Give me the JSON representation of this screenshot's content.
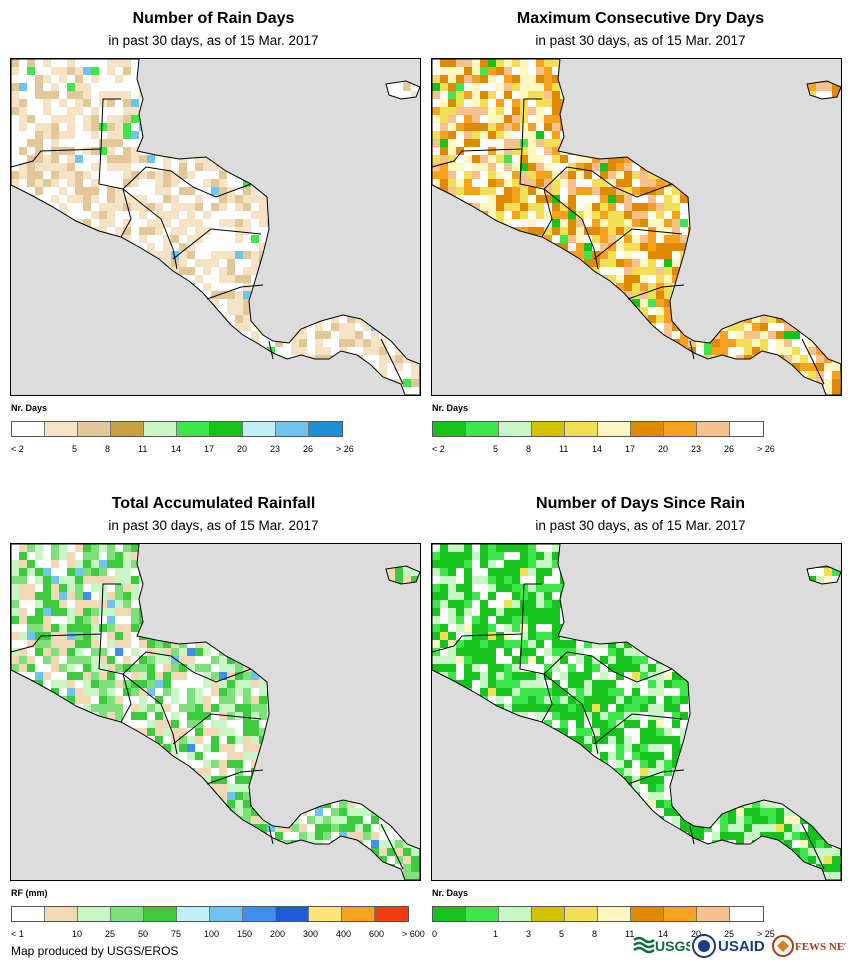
{
  "panels": [
    {
      "title": "Number of Rain Days",
      "subtitle": "in past 30 days, as of 15 Mar. 2017",
      "legend_title": "Nr. Days",
      "legend_colors": [
        "#ffffff",
        "#f6e3c6",
        "#e2c79a",
        "#c9a040",
        "#c8f7c5",
        "#3ce64b",
        "#16c21c",
        "#bff0f3",
        "#6fc3f0",
        "#1e90d8"
      ],
      "legend_labels": [
        "< 2",
        "5",
        "8",
        "11",
        "14",
        "17",
        "20",
        "23",
        "26",
        "> 26"
      ],
      "land_base": "#ffffff",
      "land_palette": [
        "#ffffff",
        "#ffffff",
        "#f6e3c6",
        "#f6e3c6",
        "#e2c79a"
      ],
      "specks": [
        "#3ce64b",
        "#6fc3f0"
      ]
    },
    {
      "title": "Maximum Consecutive Dry Days",
      "subtitle": "in past 30 days, as of 15 Mar. 2017",
      "legend_title": "Nr. Days",
      "legend_colors": [
        "#16c21c",
        "#3ce64b",
        "#c8f7c5",
        "#d2c200",
        "#f2df54",
        "#fff7c2",
        "#e08a00",
        "#f6a21f",
        "#f7c08f",
        "#ffffff"
      ],
      "legend_labels": [
        "< 2",
        "5",
        "8",
        "11",
        "14",
        "17",
        "20",
        "23",
        "26",
        "> 26"
      ],
      "land_base": "#fff7c2",
      "land_palette": [
        "#fff7c2",
        "#f2df54",
        "#e08a00",
        "#f6a21f",
        "#f7c08f",
        "#ffffff"
      ],
      "specks": [
        "#3ce64b",
        "#16c21c"
      ]
    },
    {
      "title": "Total Accumulated Rainfall",
      "subtitle": "in past 30 days, as of 15 Mar. 2017",
      "legend_title": "RF (mm)",
      "legend_colors": [
        "#ffffff",
        "#f2d8b4",
        "#c8f7c5",
        "#7ee07b",
        "#3ccb3c",
        "#bff0f3",
        "#6fc3f0",
        "#3f8ff0",
        "#1e5bd8",
        "#ffe27a",
        "#f6a21f",
        "#f03c10"
      ],
      "legend_labels": [
        "< 1",
        "10",
        "25",
        "50",
        "75",
        "100",
        "150",
        "200",
        "300",
        "400",
        "600",
        "> 600"
      ],
      "land_base": "#7ee07b",
      "land_palette": [
        "#7ee07b",
        "#c8f7c5",
        "#3ccb3c",
        "#f2d8b4",
        "#ffffff"
      ],
      "specks": [
        "#6fc3f0",
        "#3f8ff0"
      ]
    },
    {
      "title": "Number of Days Since Rain",
      "subtitle": "in past 30 days, as of 15 Mar. 2017",
      "legend_title": "Nr. Days",
      "legend_colors": [
        "#16c21c",
        "#3ce64b",
        "#c8f7c5",
        "#d2c200",
        "#f2df54",
        "#fff7c2",
        "#e08a00",
        "#f6a21f",
        "#f7c08f",
        "#ffffff"
      ],
      "legend_labels": [
        "0",
        "1",
        "3",
        "5",
        "8",
        "11",
        "14",
        "20",
        "25",
        "> 25"
      ],
      "land_base": "#16c21c",
      "land_palette": [
        "#16c21c",
        "#16c21c",
        "#3ce64b",
        "#c8f7c5",
        "#ffffff"
      ],
      "specks": [
        "#f2df54",
        "#fff7c2"
      ]
    }
  ],
  "footer": "Map produced by USGS/EROS",
  "logos": {
    "usgs": "USGS",
    "usaid": "USAID",
    "fewsnet": "FEWS NET"
  },
  "colors": {
    "ocean": "#dcdcdc",
    "border": "#000000"
  }
}
